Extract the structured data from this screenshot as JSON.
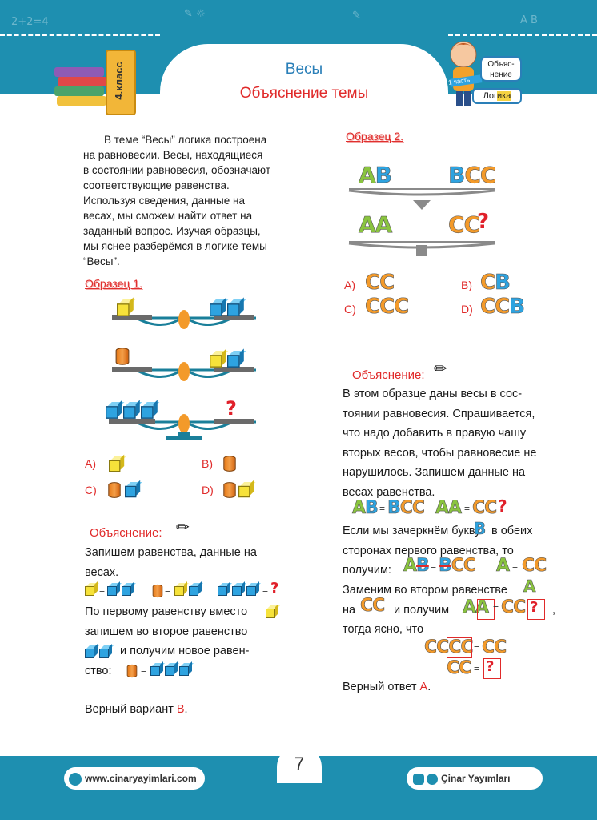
{
  "header": {
    "title": "Весы",
    "subtitle": "Объяснение  темы",
    "grade": "4.класс",
    "tag_top": "Объяс-\nнение",
    "tag_part": "1 часть",
    "tag_bottom_a": "Лог",
    "tag_bottom_b": "ика"
  },
  "intro": {
    "lines": [
      "В теме “Весы” логика построена",
      "на равновесии. Весы, находящиеся",
      "в состоянии равновесия, обозначают",
      "соответствующие равенства.",
      "Используя сведения, данные на",
      "весах, мы сможем найти ответ на",
      "заданный вопрос. Изучая образцы,",
      "мы яснее разберёмся в логике темы",
      "“Весы”."
    ]
  },
  "sample1": {
    "label": "Образец 1.",
    "options": {
      "a": "A)",
      "b": "B)",
      "c": "C)",
      "d": "D)"
    },
    "question_mark": "?"
  },
  "explanation1": {
    "label": "Объяснение:",
    "l1": "Запишем равенства, данные на",
    "l2": "весах.",
    "l3": "По первому равенству вместо",
    "l4": "запишем во второе равенство",
    "l5": "и получим новое равен-",
    "l6": "ство:",
    "answer_prefix": "Верный вариант ",
    "answer_letter": "B",
    "answer_suffix": "."
  },
  "sample2": {
    "label": "Образец 2.",
    "left1": "AB",
    "right1": "BCC",
    "left2": "AA",
    "right2": "CC",
    "question_mark": "?",
    "options": {
      "a": "A)",
      "b": "B)",
      "c": "C)",
      "d": "D)"
    },
    "opt_a": "CC",
    "opt_b_c": "C",
    "opt_b_b": "B",
    "opt_c": "CCC",
    "opt_d_c": "CC",
    "opt_d_b": "B"
  },
  "explanation2": {
    "label": "Объяснение:",
    "lines": [
      "В этом образце даны весы в сос-",
      "тоянии равновесия. Спрашивается,",
      "что надо добавить в правую чашу",
      "вторых весов, чтобы равновесие не",
      "нарушилось. Запишем данные на",
      "весах равенства."
    ],
    "e1_left": "AB",
    "e1_right": "BCC",
    "e2_left": "AA",
    "e2_right": "CC",
    "eq": "=",
    "l_cross_a": "Если мы зачеркнём букву",
    "l_cross_b": "в обеих",
    "l_cross_letter": "B",
    "l_sides": "сторонах первого равенства, то",
    "l_get": "получим:",
    "r1_left": "AB",
    "r1_right": "BCC",
    "r2_left": "A",
    "r2_right": "CC",
    "l_replace": "Заменим во втором равенстве",
    "l_replace_letter": "A",
    "l_na": "на",
    "l_na_val": "CC",
    "l_and": "и получим",
    "l_and_val": "AA",
    "l_and_right": "CC",
    "l_comma": ",",
    "l_clear": "тогда ясно, что",
    "f1_left": "CCCC",
    "f1_right": "CC",
    "f2_left": "CC",
    "answer_prefix": "Верный ответ ",
    "answer_letter": "A",
    "answer_suffix": "."
  },
  "footer": {
    "website": "www.cinaryayimlari.com",
    "brand": "Çinar Yayımları",
    "page": "7"
  },
  "colors": {
    "band": "#1e8fb0",
    "red": "#e02a2a",
    "blue_letter": "#2ea3e0",
    "green_letter": "#8ac43f",
    "orange_letter": "#f39a2a"
  }
}
